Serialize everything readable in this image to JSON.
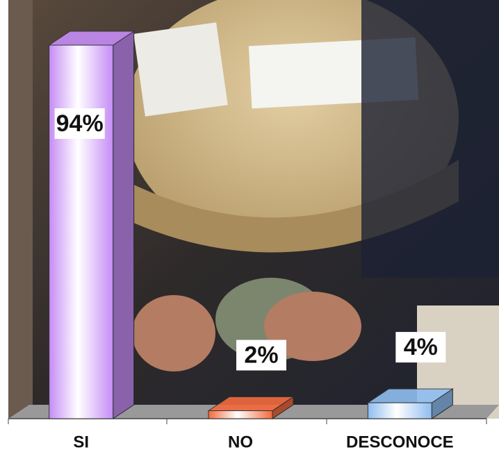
{
  "chart_data": {
    "type": "bar3d",
    "categories": [
      "SI",
      "NO",
      "DESCONOCE"
    ],
    "values": [
      94,
      2,
      4
    ],
    "value_labels": [
      "94%",
      "2%",
      "4%"
    ],
    "colors": [
      "#c58cf5",
      "#f26a3d",
      "#8fbdf0"
    ]
  }
}
